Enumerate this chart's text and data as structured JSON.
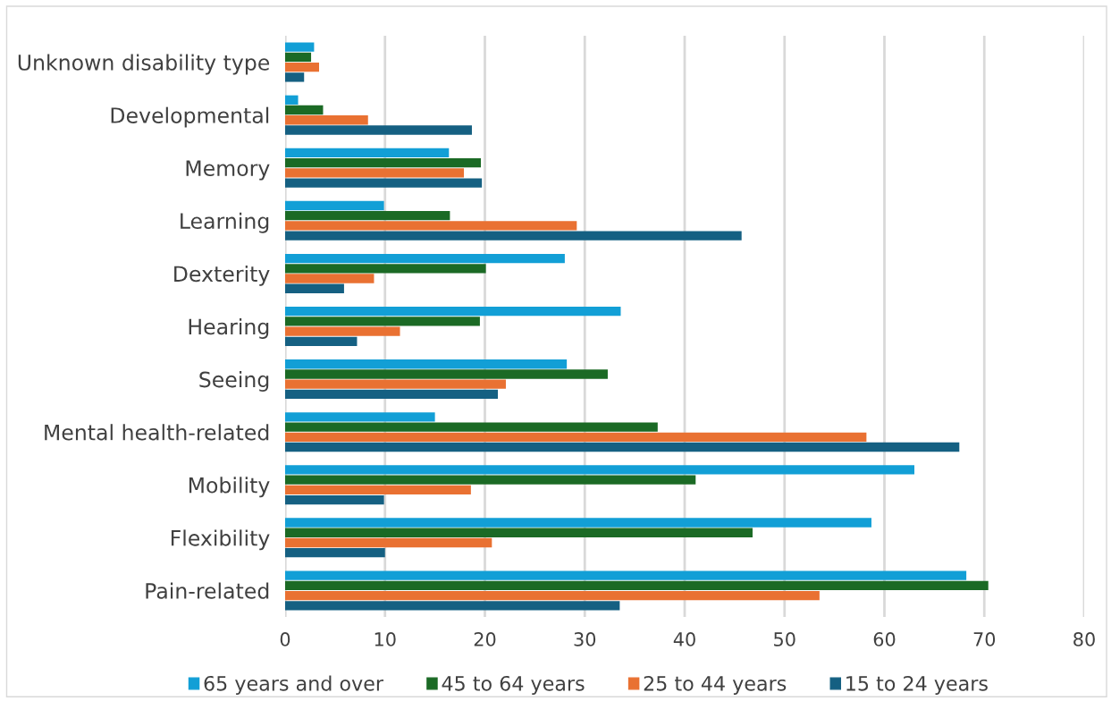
{
  "chart_data": {
    "type": "bar",
    "orientation": "horizontal",
    "categories": [
      "Unknown disability type",
      "Developmental",
      "Memory",
      "Learning",
      "Dexterity",
      "Hearing",
      "Seeing",
      "Mental health-related",
      "Mobility",
      "Flexibility",
      "Pain-related"
    ],
    "series": [
      {
        "name": "65 years and over",
        "color": "#129fd6",
        "values": [
          2.9,
          1.3,
          16.4,
          9.9,
          28.0,
          33.6,
          28.2,
          15.0,
          63.0,
          58.7,
          68.2
        ]
      },
      {
        "name": "45 to 64 years",
        "color": "#1b6a25",
        "values": [
          2.6,
          3.8,
          19.6,
          16.5,
          20.1,
          19.5,
          32.3,
          37.3,
          41.1,
          46.8,
          70.4
        ]
      },
      {
        "name": "25 to 44 years",
        "color": "#e97132",
        "values": [
          3.4,
          8.3,
          17.9,
          29.2,
          8.9,
          11.5,
          22.1,
          58.2,
          18.6,
          20.7,
          53.5
        ]
      },
      {
        "name": "15 to 24 years",
        "color": "#156082",
        "values": [
          1.9,
          18.7,
          19.7,
          45.7,
          5.9,
          7.2,
          21.3,
          67.5,
          9.9,
          10.0,
          33.5
        ]
      }
    ],
    "xlim": [
      0,
      80
    ],
    "xticks": [
      0,
      10,
      20,
      30,
      40,
      50,
      60,
      70,
      80
    ],
    "grid": "x",
    "legend": "bottom"
  }
}
